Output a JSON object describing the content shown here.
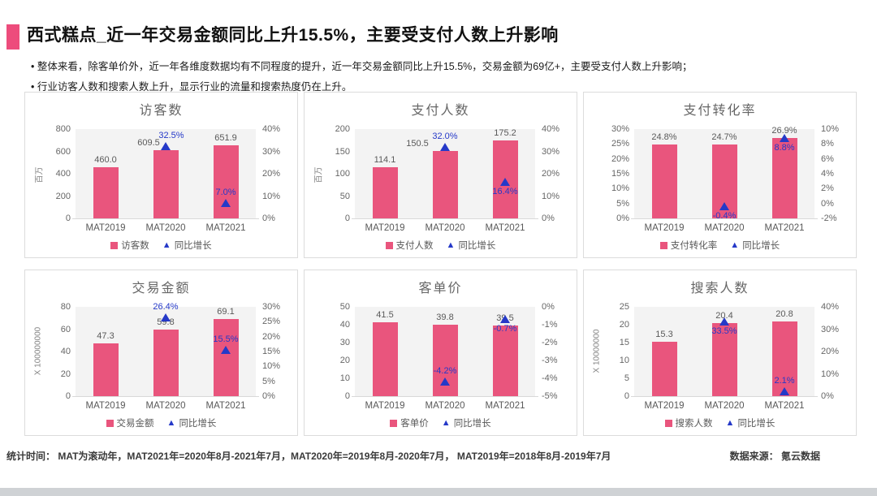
{
  "page": {
    "title": "西式糕点_近一年交易金额同比上升15.5%，主要受支付人数上升影响",
    "bullets": [
      "• 整体来看，除客单价外，近一年各维度数据均有不同程度的提升，近一年交易金额同比上升15.5%，交易金额为69亿+，主要受支付人数上升影响；",
      "• 行业访客人数和搜索人数上升，显示行业的流量和搜索热度仍在上升。"
    ],
    "footer_left": "统计时间： MAT为滚动年，MAT2021年=2020年8月-2021年7月，MAT2020年=2019年8月-2020年7月， MAT2019年=2018年8月-2019年7月",
    "footer_right": "数据来源： 氪云数据"
  },
  "colors": {
    "bar": "#E9557D",
    "growth": "#2539C8",
    "accent": "#ED4C7C",
    "tick_text": "#666666",
    "value_text": "#595959",
    "panel_border": "#DCDCDC",
    "plot_bg": "#F3F3F3",
    "bottom_strip": "#CFD2D5"
  },
  "chart_data": [
    {
      "type": "bar",
      "title": "访客数",
      "unit": "百万",
      "categories": [
        "MAT2019",
        "MAT2020",
        "MAT2021"
      ],
      "series": [
        {
          "name": "访客数",
          "type": "bar",
          "values": [
            460.0,
            609.5,
            651.9
          ],
          "labels": [
            "460.0",
            "609.5",
            "651.9"
          ]
        },
        {
          "name": "同比增长",
          "type": "marker",
          "axis": "right",
          "values": [
            null,
            32.5,
            7.0
          ],
          "labels": [
            null,
            "32.5%",
            "7.0%"
          ]
        }
      ],
      "left_axis": {
        "min": 0,
        "max": 800,
        "ticks": [
          "800",
          "600",
          "400",
          "200",
          "0"
        ]
      },
      "right_axis": {
        "min": 0,
        "max": 40,
        "ticks": [
          "40%",
          "30%",
          "20%",
          "10%",
          "0%"
        ]
      },
      "legend": [
        "访客数",
        "同比增长"
      ],
      "layout": {
        "growth_label_below": [
          false,
          false,
          false
        ],
        "value_dx": [
          0,
          -21,
          0
        ],
        "growth_dx": [
          0,
          7,
          0
        ]
      }
    },
    {
      "type": "bar",
      "title": "支付人数",
      "unit": "百万",
      "categories": [
        "MAT2019",
        "MAT2020",
        "MAT2021"
      ],
      "series": [
        {
          "name": "支付人数",
          "type": "bar",
          "values": [
            114.1,
            150.5,
            175.2
          ],
          "labels": [
            "114.1",
            "150.5",
            "175.2"
          ]
        },
        {
          "name": "同比增长",
          "type": "marker",
          "axis": "right",
          "values": [
            null,
            32.0,
            16.4
          ],
          "labels": [
            null,
            "32.0%",
            "16.4%"
          ]
        }
      ],
      "left_axis": {
        "min": 0,
        "max": 200,
        "ticks": [
          "200",
          "150",
          "100",
          "50",
          "0"
        ]
      },
      "right_axis": {
        "min": 0,
        "max": 40,
        "ticks": [
          "40%",
          "30%",
          "20%",
          "10%",
          "0%"
        ]
      },
      "legend": [
        "支付人数",
        "同比增长"
      ],
      "layout": {
        "growth_label_below": [
          false,
          false,
          true
        ],
        "value_dx": [
          0,
          -34,
          0
        ],
        "growth_dx": [
          0,
          0,
          0
        ]
      }
    },
    {
      "type": "bar",
      "title": "支付转化率",
      "unit": "",
      "categories": [
        "MAT2019",
        "MAT2020",
        "MAT2021"
      ],
      "series": [
        {
          "name": "支付转化率",
          "type": "bar",
          "values": [
            24.8,
            24.7,
            26.9
          ],
          "labels": [
            "24.8%",
            "24.7%",
            "26.9%"
          ]
        },
        {
          "name": "同比增长",
          "type": "marker",
          "axis": "right",
          "values": [
            null,
            -0.4,
            8.8
          ],
          "labels": [
            null,
            "-0.4%",
            "8.8%"
          ]
        }
      ],
      "left_axis": {
        "min": 0,
        "max": 30,
        "ticks": [
          "30%",
          "25%",
          "20%",
          "15%",
          "10%",
          "5%",
          "0%"
        ]
      },
      "right_axis": {
        "min": -2,
        "max": 10,
        "ticks": [
          "10%",
          "8%",
          "6%",
          "4%",
          "2%",
          "0%",
          "-2%"
        ]
      },
      "legend": [
        "支付转化率",
        "同比增长"
      ],
      "layout": {
        "growth_label_below": [
          false,
          true,
          true
        ],
        "value_dx": [
          0,
          0,
          0
        ],
        "growth_dx": [
          0,
          0,
          0
        ]
      }
    },
    {
      "type": "bar",
      "title": "交易金额",
      "unit": "X 100000000",
      "categories": [
        "MAT2019",
        "MAT2020",
        "MAT2021"
      ],
      "series": [
        {
          "name": "交易金额",
          "type": "bar",
          "values": [
            47.3,
            59.8,
            69.1
          ],
          "labels": [
            "47.3",
            "59.8",
            "69.1"
          ]
        },
        {
          "name": "同比增长",
          "type": "marker",
          "axis": "right",
          "values": [
            null,
            26.4,
            15.5
          ],
          "labels": [
            null,
            "26.4%",
            "15.5%"
          ]
        }
      ],
      "left_axis": {
        "min": 0,
        "max": 80,
        "ticks": [
          "80",
          "60",
          "40",
          "20",
          "0"
        ]
      },
      "right_axis": {
        "min": 0,
        "max": 30,
        "ticks": [
          "30%",
          "25%",
          "20%",
          "15%",
          "10%",
          "5%",
          "0%"
        ]
      },
      "legend": [
        "交易金额",
        "同比增长"
      ],
      "layout": {
        "growth_label_below": [
          false,
          false,
          false
        ],
        "value_dx": [
          0,
          0,
          0
        ],
        "growth_dx": [
          0,
          0,
          0
        ]
      }
    },
    {
      "type": "bar",
      "title": "客单价",
      "unit": "",
      "categories": [
        "MAT2019",
        "MAT2020",
        "MAT2021"
      ],
      "series": [
        {
          "name": "客单价",
          "type": "bar",
          "values": [
            41.5,
            39.8,
            39.5
          ],
          "labels": [
            "41.5",
            "39.8",
            "39.5"
          ]
        },
        {
          "name": "同比增长",
          "type": "marker",
          "axis": "right",
          "values": [
            null,
            -4.2,
            -0.7
          ],
          "labels": [
            null,
            "-4.2%",
            "-0.7%"
          ]
        }
      ],
      "left_axis": {
        "min": 0,
        "max": 50,
        "ticks": [
          "50",
          "40",
          "30",
          "20",
          "10",
          "0"
        ]
      },
      "right_axis": {
        "min": -5,
        "max": 0,
        "ticks": [
          "0%",
          "-1%",
          "-2%",
          "-3%",
          "-4%",
          "-5%"
        ]
      },
      "legend": [
        "客单价",
        "同比增长"
      ],
      "layout": {
        "growth_label_below": [
          false,
          false,
          true
        ],
        "value_dx": [
          0,
          0,
          0
        ],
        "growth_dx": [
          0,
          0,
          0
        ]
      }
    },
    {
      "type": "bar",
      "title": "搜索人数",
      "unit": "X 10000000",
      "categories": [
        "MAT2019",
        "MAT2020",
        "MAT2021"
      ],
      "series": [
        {
          "name": "搜索人数",
          "type": "bar",
          "values": [
            15.3,
            20.4,
            20.8
          ],
          "labels": [
            "15.3",
            "20.4",
            "20.8"
          ]
        },
        {
          "name": "同比增长",
          "type": "marker",
          "axis": "right",
          "values": [
            null,
            33.5,
            2.1
          ],
          "labels": [
            null,
            "33.5%",
            "2.1%"
          ]
        }
      ],
      "left_axis": {
        "min": 0,
        "max": 25,
        "ticks": [
          "25",
          "20",
          "15",
          "10",
          "5",
          "0"
        ]
      },
      "right_axis": {
        "min": 0,
        "max": 40,
        "ticks": [
          "40%",
          "30%",
          "20%",
          "10%",
          "0%"
        ]
      },
      "legend": [
        "搜索人数",
        "同比增长"
      ],
      "layout": {
        "growth_label_below": [
          false,
          true,
          false
        ],
        "value_dx": [
          0,
          0,
          0
        ],
        "growth_dx": [
          0,
          0,
          0
        ]
      }
    }
  ]
}
